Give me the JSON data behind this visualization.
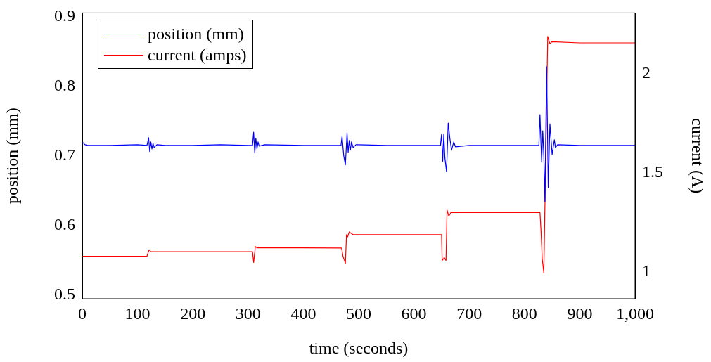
{
  "chart_data": {
    "type": "line",
    "xlabel": "time (seconds)",
    "ylabel": "position (mm)",
    "y2label": "current (A)",
    "xlim": [
      0,
      1000
    ],
    "xticks": [
      0,
      100,
      200,
      300,
      400,
      500,
      600,
      700,
      800,
      900,
      {
        "value": 1000,
        "label": "1,000"
      }
    ],
    "ylim": [
      0.495,
      0.905
    ],
    "yticks": [
      0.5,
      0.6,
      0.7,
      0.8,
      0.9
    ],
    "y2lim": [
      0.863,
      2.305
    ],
    "y2ticks": [
      1,
      1.5,
      2
    ],
    "grid": false,
    "legend": "top left",
    "marker": "none",
    "line_style": "solid",
    "series": [
      {
        "name": "position (mm)",
        "color": "#0000ff",
        "x": [
          0,
          5,
          10,
          50,
          100,
          117,
          120,
          122,
          124,
          126,
          128,
          130,
          135,
          150,
          200,
          250,
          300,
          308,
          310,
          312,
          314,
          316,
          318,
          320,
          330,
          400,
          468,
          470,
          473,
          476,
          479,
          481,
          483,
          485,
          487,
          490,
          495,
          550,
          600,
          648,
          650,
          652,
          654,
          656,
          659,
          662,
          665,
          668,
          672,
          675,
          700,
          800,
          826,
          828,
          831,
          833,
          835,
          837,
          840,
          843,
          846,
          850,
          854,
          856,
          860,
          900,
          1000
        ],
        "values": [
          0.72,
          0.716,
          0.715,
          0.715,
          0.716,
          0.715,
          0.726,
          0.706,
          0.72,
          0.71,
          0.718,
          0.712,
          0.716,
          0.715,
          0.715,
          0.716,
          0.715,
          0.715,
          0.734,
          0.704,
          0.725,
          0.71,
          0.72,
          0.714,
          0.716,
          0.715,
          0.715,
          0.728,
          0.7,
          0.687,
          0.733,
          0.705,
          0.722,
          0.708,
          0.72,
          0.712,
          0.716,
          0.715,
          0.715,
          0.715,
          0.731,
          0.692,
          0.731,
          0.697,
          0.677,
          0.747,
          0.725,
          0.708,
          0.72,
          0.713,
          0.715,
          0.715,
          0.715,
          0.759,
          0.691,
          0.736,
          0.7,
          0.634,
          0.828,
          0.654,
          0.746,
          0.702,
          0.723,
          0.712,
          0.716,
          0.715,
          0.715
        ]
      },
      {
        "name": "current (amps)",
        "color": "#ff0000",
        "axis": "y2",
        "x": [
          0,
          50,
          100,
          117,
          119,
          121,
          124,
          130,
          200,
          250,
          306,
          308,
          310,
          311,
          313,
          316,
          320,
          400,
          467,
          469,
          472,
          474,
          476,
          478,
          480,
          483,
          490,
          550,
          648,
          650,
          651,
          655,
          658,
          660,
          663,
          667,
          675,
          750,
          826,
          828,
          830,
          832,
          835,
          842,
          846,
          850,
          900,
          1000
        ],
        "values": [
          1.077,
          1.077,
          1.077,
          1.077,
          1.095,
          1.11,
          1.1,
          1.1,
          1.1,
          1.1,
          1.1,
          1.1,
          1.046,
          1.07,
          1.126,
          1.12,
          1.12,
          1.12,
          1.119,
          1.119,
          1.074,
          1.06,
          1.039,
          1.186,
          1.175,
          1.2,
          1.186,
          1.186,
          1.186,
          1.186,
          1.056,
          1.07,
          1.056,
          1.31,
          1.28,
          1.298,
          1.298,
          1.298,
          1.298,
          1.298,
          1.2,
          1.067,
          0.993,
          2.186,
          2.15,
          2.16,
          2.154,
          2.154
        ]
      }
    ]
  }
}
